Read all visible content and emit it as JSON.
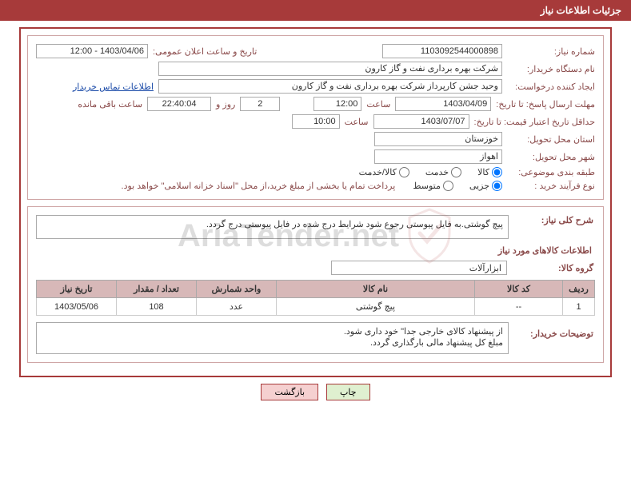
{
  "header": {
    "title": "جزئیات اطلاعات نیاز"
  },
  "info": {
    "need_no_label": "شماره نیاز:",
    "need_no": "1103092544000898",
    "announce_label": "تاریخ و ساعت اعلان عمومی:",
    "announce_value": "1403/04/06 - 12:00",
    "buyer_org_label": "نام دستگاه خریدار:",
    "buyer_org": "شرکت بهره برداری نفت و گاز کارون",
    "requester_label": "ایجاد کننده درخواست:",
    "requester": "وحید جشن کارپرداز شرکت بهره برداری نفت و گاز کارون",
    "contact_link": "اطلاعات تماس خریدار",
    "deadline_label": "مهلت ارسال پاسخ: تا تاریخ:",
    "deadline_date": "1403/04/09",
    "time_word": "ساعت",
    "deadline_time": "12:00",
    "days_count": "2",
    "days_word": "روز و",
    "countdown": "22:40:04",
    "remaining_word": "ساعت باقی مانده",
    "validity_label": "حداقل تاریخ اعتبار قیمت: تا تاریخ:",
    "validity_date": "1403/07/07",
    "validity_time": "10:00",
    "province_label": "استان محل تحویل:",
    "province": "خوزستان",
    "city_label": "شهر محل تحویل:",
    "city": "اهواز",
    "category_label": "طبقه بندی موضوعی:",
    "cat_goods": "کالا",
    "cat_service": "خدمت",
    "cat_both": "کالا/خدمت",
    "process_label": "نوع فرآیند خرید :",
    "proc_partial": "جزیی",
    "proc_medium": "متوسط",
    "payment_note": "پرداخت تمام یا بخشی از مبلغ خرید،از محل \"اسناد خزانه اسلامی\" خواهد بود."
  },
  "desc": {
    "overall_label": "شرح کلی نیاز:",
    "overall_text": "پیچ گوشتی.به فایل پیوستی رجوع شود شرایط درج شده در فایل پیوستی درج گردد.",
    "items_heading": "اطلاعات کالاهای مورد نیاز",
    "group_label": "گروه کالا:",
    "group_value": "ابزارآلات"
  },
  "table": {
    "headers": {
      "row": "ردیف",
      "code": "کد کالا",
      "name": "نام کالا",
      "unit": "واحد شمارش",
      "qty": "تعداد / مقدار",
      "date": "تاریخ نیاز"
    },
    "rows": [
      {
        "row": "1",
        "code": "--",
        "name": "پیچ گوشتی",
        "unit": "عدد",
        "qty": "108",
        "date": "1403/05/06"
      }
    ]
  },
  "buyer_notes": {
    "label": "توضیحات خریدار:",
    "line1": "از پیشنهاد کالای خارجی جدا\" خود داری شود.",
    "line2": "مبلغ کل پیشنهاد مالی بارگذاری گردد."
  },
  "buttons": {
    "print": "چاپ",
    "back": "بازگشت"
  },
  "watermark": {
    "text": "AriaTender.net"
  }
}
